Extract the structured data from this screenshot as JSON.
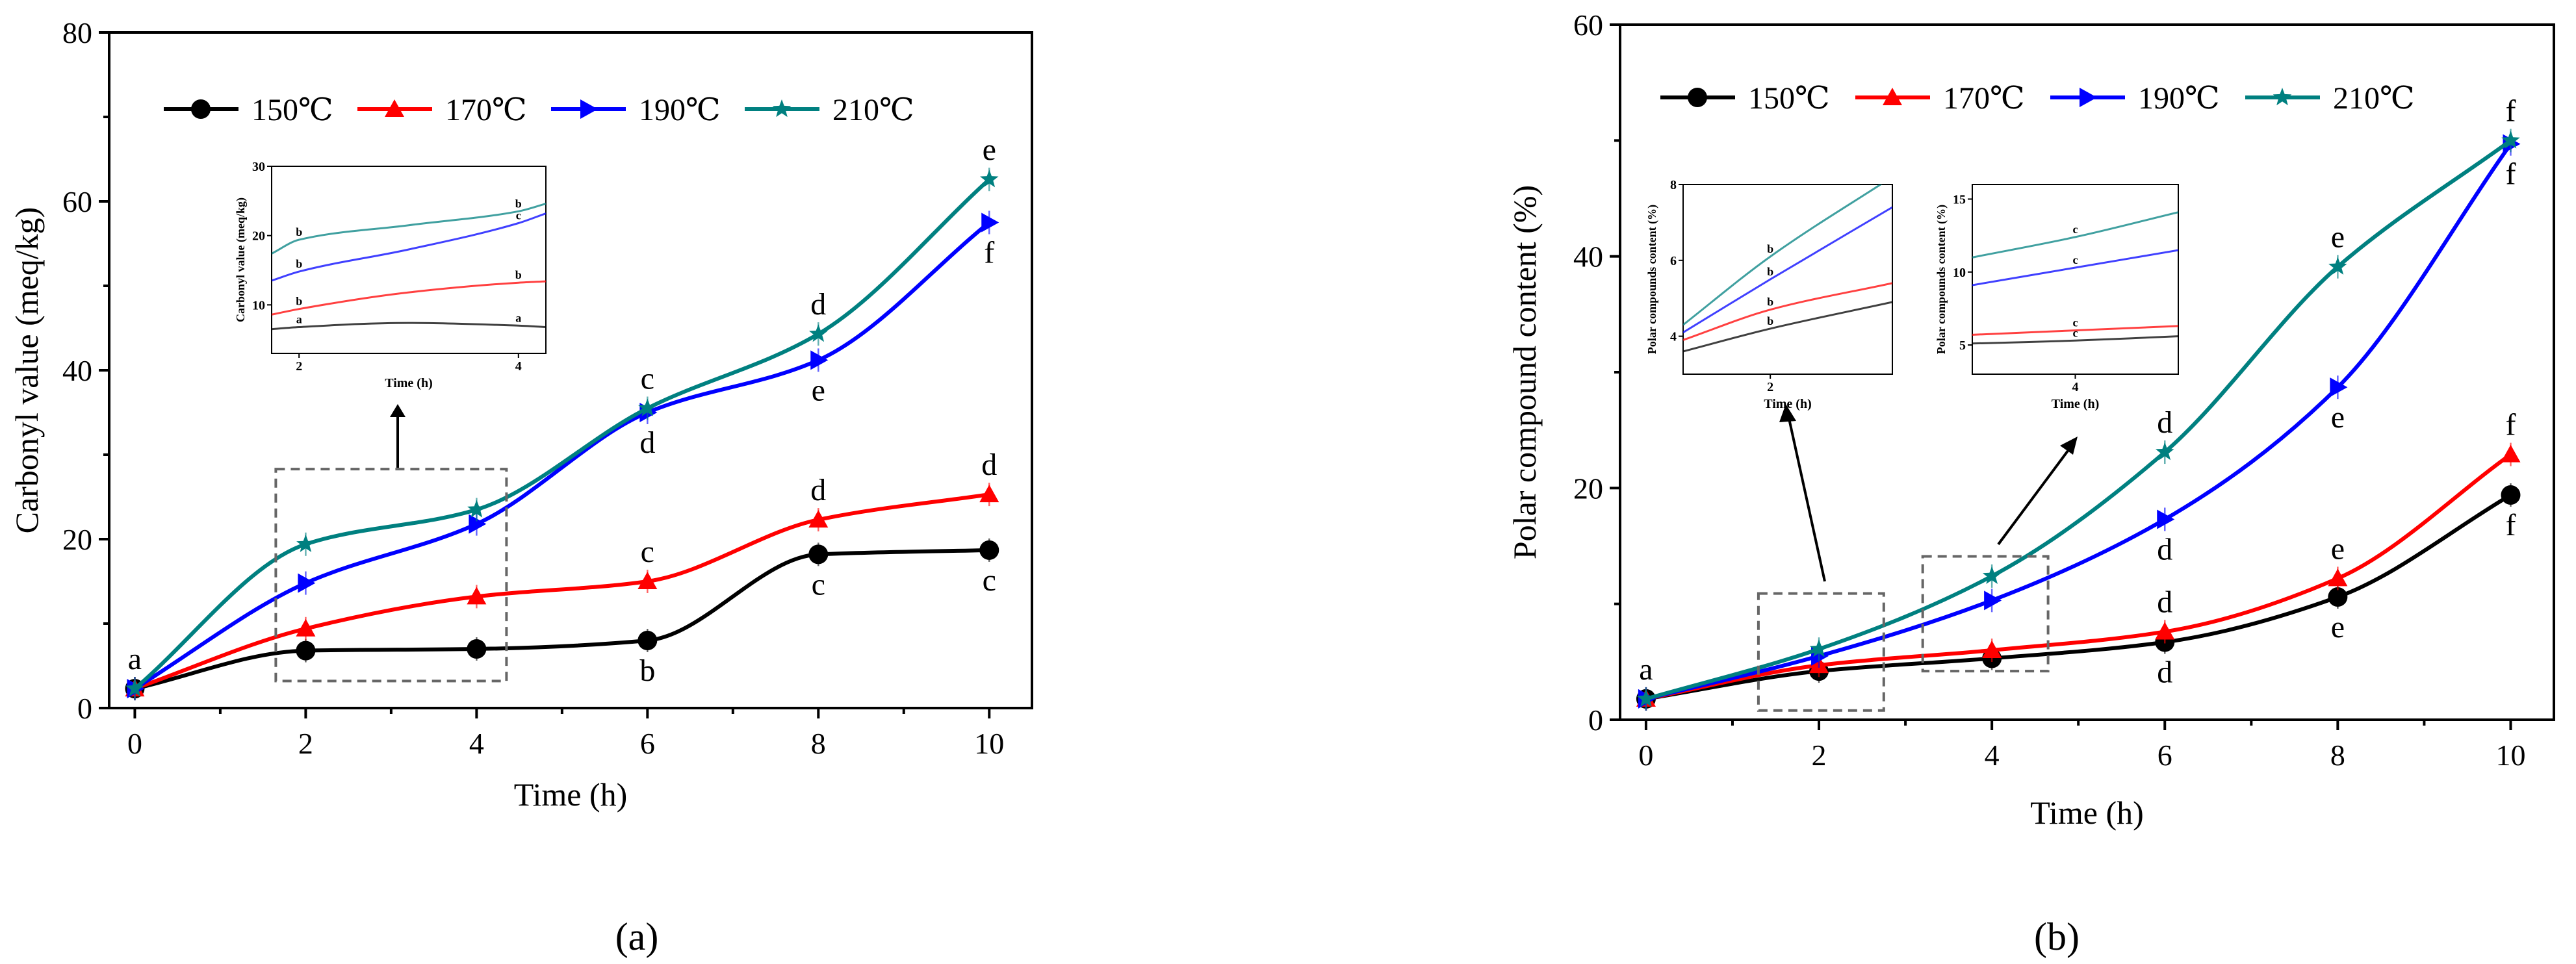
{
  "figure_label_a": "(a)",
  "figure_label_b": "(b)",
  "series_style": [
    {
      "name": "150℃",
      "color": "#000000",
      "marker": "circle"
    },
    {
      "name": "170℃",
      "color": "#ff0000",
      "marker": "triangle"
    },
    {
      "name": "190℃",
      "color": "#0000ff",
      "marker": "triangle-right"
    },
    {
      "name": "210℃",
      "color": "#008080",
      "marker": "star"
    }
  ],
  "chart_data": [
    {
      "id": "a",
      "type": "line",
      "title": "",
      "xlabel": "Time (h)",
      "ylabel": "Carbonyl value (meq/kg)",
      "x": [
        0,
        2,
        4,
        6,
        8,
        10
      ],
      "xlim": [
        -0.3,
        10.5
      ],
      "ylim": [
        0,
        80
      ],
      "xticks": [
        0,
        2,
        4,
        6,
        8,
        10
      ],
      "yticks": [
        0,
        20,
        40,
        60,
        80
      ],
      "legend": "top",
      "series": [
        {
          "name": "150℃",
          "values": [
            2.3,
            6.8,
            7.0,
            8.0,
            18.2,
            18.7
          ],
          "letters": [
            "a",
            "",
            "",
            "b",
            "c",
            "c"
          ],
          "letter_pos": [
            "above",
            "",
            "",
            "below",
            "below",
            "below"
          ]
        },
        {
          "name": "170℃",
          "values": [
            2.3,
            9.4,
            13.2,
            15.0,
            22.3,
            25.3
          ],
          "letters": [
            "",
            "",
            "",
            "c",
            "d",
            "d"
          ],
          "letter_pos": [
            "",
            "",
            "",
            "above",
            "above",
            "above"
          ]
        },
        {
          "name": "190℃",
          "values": [
            2.3,
            14.8,
            21.8,
            35.0,
            41.2,
            57.5
          ],
          "letters": [
            "",
            "",
            "",
            "d",
            "e",
            "f"
          ],
          "letter_pos": [
            "",
            "",
            "",
            "below",
            "below",
            "below"
          ]
        },
        {
          "name": "210℃",
          "values": [
            2.3,
            19.4,
            23.5,
            35.5,
            44.3,
            62.6
          ],
          "letters": [
            "",
            "",
            "",
            "c",
            "d",
            "e"
          ],
          "letter_pos": [
            "",
            "",
            "",
            "above",
            "above",
            "above"
          ]
        }
      ],
      "highlight_region": {
        "x": [
          1.65,
          4.35
        ],
        "y": [
          3.2,
          28.3
        ]
      },
      "inset": {
        "xlabel": "Time (h)",
        "ylabel": "Carbonyl value (meq/kg)",
        "xlim": [
          1.75,
          4.25
        ],
        "ylim": [
          3,
          30
        ],
        "xticks": [
          2,
          4
        ],
        "yticks": [
          10,
          20,
          30
        ],
        "series": [
          {
            "name": "150℃",
            "x": [
              1.75,
              2,
              3,
              4,
              4.25
            ],
            "values": [
              6.5,
              6.8,
              7.4,
              7.0,
              6.8
            ],
            "letters": [
              "a",
              "a"
            ]
          },
          {
            "name": "170℃",
            "x": [
              1.75,
              2,
              3,
              4,
              4.25
            ],
            "values": [
              8.6,
              9.4,
              11.8,
              13.2,
              13.4
            ],
            "letters": [
              "b",
              "b"
            ]
          },
          {
            "name": "190℃",
            "x": [
              1.75,
              2,
              3,
              4,
              4.25
            ],
            "values": [
              13.5,
              14.8,
              18.0,
              21.8,
              23.2
            ],
            "letters": [
              "b",
              "c"
            ]
          },
          {
            "name": "210℃",
            "x": [
              1.75,
              2,
              3,
              4,
              4.25
            ],
            "values": [
              17.4,
              19.4,
              21.5,
              23.5,
              24.6
            ],
            "letters": [
              "b",
              "b"
            ]
          }
        ]
      }
    },
    {
      "id": "b",
      "type": "line",
      "title": "",
      "xlabel": "Time (h)",
      "ylabel": "Polar compound content (%)",
      "x": [
        0,
        2,
        4,
        6,
        8,
        10
      ],
      "xlim": [
        -0.3,
        10.5
      ],
      "ylim": [
        0,
        60
      ],
      "xticks": [
        0,
        2,
        4,
        6,
        8,
        10
      ],
      "yticks": [
        0,
        20,
        40,
        60
      ],
      "legend": "top",
      "series": [
        {
          "name": "150℃",
          "values": [
            1.8,
            4.2,
            5.3,
            6.7,
            10.6,
            19.4
          ],
          "letters": [
            "a",
            "",
            "",
            "d",
            "e",
            "f"
          ],
          "letter_pos": [
            "above",
            "",
            "",
            "below",
            "below",
            "below"
          ]
        },
        {
          "name": "170℃",
          "values": [
            1.8,
            4.7,
            6.0,
            7.6,
            12.2,
            22.9
          ],
          "letters": [
            "",
            "",
            "",
            "d",
            "e",
            "f"
          ],
          "letter_pos": [
            "",
            "",
            "",
            "above",
            "above",
            "above"
          ]
        },
        {
          "name": "190℃",
          "values": [
            1.8,
            5.5,
            10.3,
            17.3,
            28.7,
            49.7
          ],
          "letters": [
            "",
            "",
            "",
            "d",
            "e",
            "f"
          ],
          "letter_pos": [
            "",
            "",
            "",
            "below",
            "below",
            "below"
          ]
        },
        {
          "name": "210℃",
          "values": [
            1.8,
            6.1,
            12.4,
            23.1,
            39.1,
            50.0
          ],
          "letters": [
            "",
            "",
            "",
            "d",
            "e",
            "f"
          ],
          "letter_pos": [
            "",
            "",
            "",
            "above",
            "above",
            "above"
          ]
        }
      ],
      "highlight_regions": [
        {
          "x": [
            1.3,
            2.75
          ],
          "y": [
            0.8,
            10.9
          ]
        },
        {
          "x": [
            3.2,
            4.65
          ],
          "y": [
            4.2,
            14.1
          ]
        }
      ],
      "insets": [
        {
          "xlabel": "Time (h)",
          "ylabel": "Polar compounds content (%)",
          "xlim": [
            1.5,
            2.7
          ],
          "ylim": [
            3,
            8
          ],
          "xticks": [
            2
          ],
          "yticks": [
            4,
            6,
            8
          ],
          "series": [
            {
              "name": "150℃",
              "x": [
                1.5,
                2,
                2.7
              ],
              "values": [
                3.6,
                4.2,
                4.9
              ],
              "letters": [
                "b"
              ]
            },
            {
              "name": "170℃",
              "x": [
                1.5,
                2,
                2.7
              ],
              "values": [
                3.9,
                4.7,
                5.4
              ],
              "letters": [
                "b"
              ]
            },
            {
              "name": "190℃",
              "x": [
                1.5,
                2,
                2.7
              ],
              "values": [
                4.1,
                5.5,
                7.4
              ],
              "letters": [
                "b"
              ]
            },
            {
              "name": "210℃",
              "x": [
                1.5,
                2,
                2.7
              ],
              "values": [
                4.3,
                6.1,
                8.2
              ],
              "letters": [
                "b"
              ]
            }
          ]
        },
        {
          "xlabel": "Time (h)",
          "ylabel": "Polar compounds content (%)",
          "xlim": [
            3.3,
            4.7
          ],
          "ylim": [
            3,
            16
          ],
          "xticks": [
            4
          ],
          "yticks": [
            5,
            10,
            15
          ],
          "series": [
            {
              "name": "150℃",
              "x": [
                3.3,
                4,
                4.7
              ],
              "values": [
                5.1,
                5.3,
                5.6
              ],
              "letters": [
                "c"
              ]
            },
            {
              "name": "170℃",
              "x": [
                3.3,
                4,
                4.7
              ],
              "values": [
                5.7,
                6.0,
                6.3
              ],
              "letters": [
                "c"
              ]
            },
            {
              "name": "190℃",
              "x": [
                3.3,
                4,
                4.7
              ],
              "values": [
                9.1,
                10.3,
                11.5
              ],
              "letters": [
                "c"
              ]
            },
            {
              "name": "210℃",
              "x": [
                3.3,
                4,
                4.7
              ],
              "values": [
                11.0,
                12.4,
                14.1
              ],
              "letters": [
                "c"
              ]
            }
          ]
        }
      ]
    }
  ]
}
